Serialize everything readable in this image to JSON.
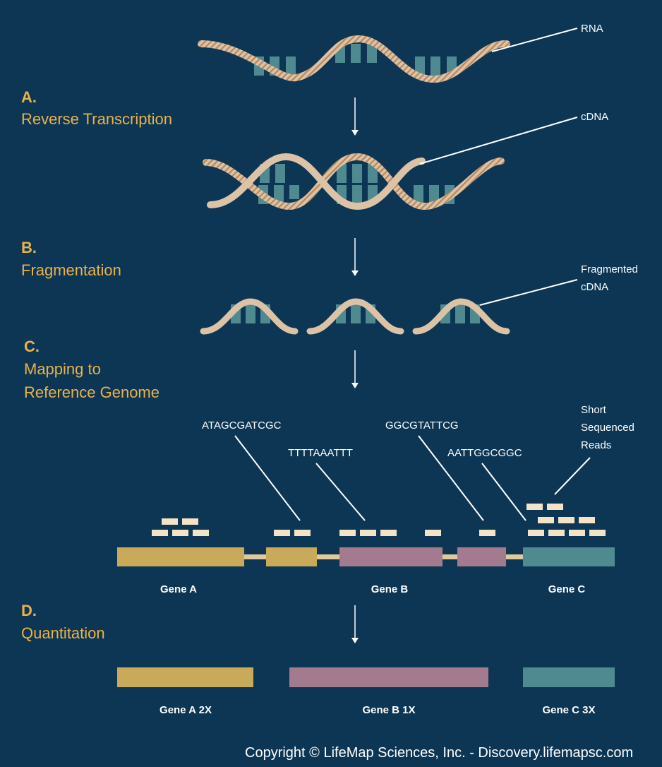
{
  "steps": [
    {
      "letter": "A.",
      "title_lines": [
        "Reverse Transcription"
      ]
    },
    {
      "letter": "B.",
      "title_lines": [
        "Fragmentation"
      ]
    },
    {
      "letter": "C.",
      "title_lines": [
        "Mapping to",
        "Reference Genome"
      ]
    },
    {
      "letter": "D.",
      "title_lines": [
        "Quantitation"
      ]
    }
  ],
  "callouts": {
    "rna": "RNA",
    "cdna": "cDNA",
    "fragmented": [
      "Fragmented",
      "cDNA"
    ],
    "short_reads": [
      "Short",
      "Sequenced",
      "Reads"
    ]
  },
  "sequences": [
    "ATAGCGATCGC",
    "TTTTAAATTT",
    "GGCGTATTCG",
    "AATTGGCGGC"
  ],
  "genes": [
    {
      "label": "Gene A",
      "color": "#c9a95a"
    },
    {
      "label": "Gene B",
      "color": "#a47a8e"
    },
    {
      "label": "Gene C",
      "color": "#4f8a90"
    }
  ],
  "quantitation": [
    {
      "label": "Gene A 2X",
      "count": 2
    },
    {
      "label": "Gene B 1X",
      "count": 1
    },
    {
      "label": "Gene C 3X",
      "count": 3
    }
  ],
  "copyright": "Copyright © LifeMap Sciences, Inc. - Discovery.lifemapsc.com",
  "colors": {
    "background": "#0c3654",
    "accent": "#eab24a",
    "strand": "#dcc3a6",
    "base": "#4f8a90",
    "read": "#f3e3c7"
  }
}
